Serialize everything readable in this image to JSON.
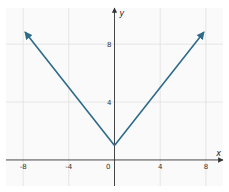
{
  "chart_data": {
    "type": "line",
    "xlabel": "x",
    "ylabel": "y",
    "x": [
      -7.8,
      0,
      7.8
    ],
    "values": [
      8.8,
      1,
      8.8
    ],
    "color": "#2e6b8a",
    "xlim": [
      -9.5,
      9.5
    ],
    "ylim": [
      -1.8,
      10.5
    ],
    "xticks": [
      -8,
      -4,
      0,
      4,
      8
    ],
    "yticks": [
      4,
      8
    ],
    "grid": true
  }
}
